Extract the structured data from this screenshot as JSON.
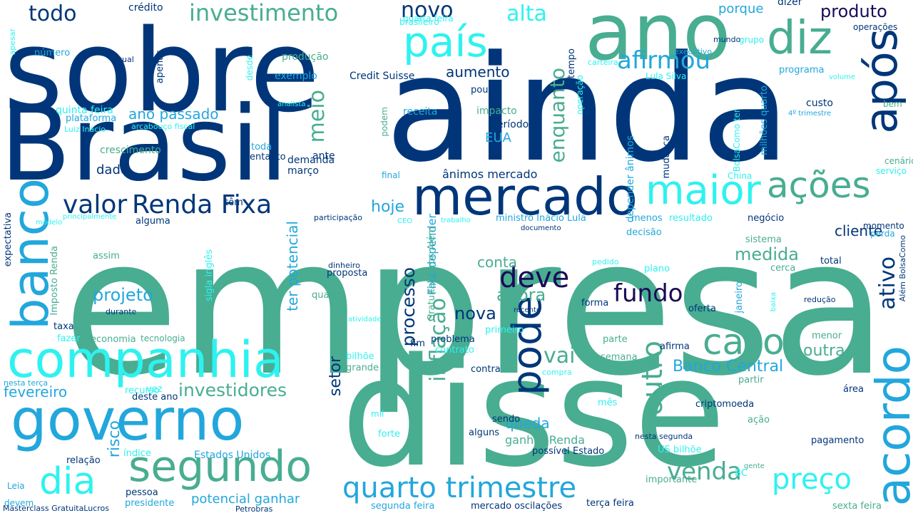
{
  "palette": {
    "navy": "#003679",
    "teal": "#48ad91",
    "cyan": "#2ef2f0",
    "blue": "#22a7dc",
    "indigo": "#1a0a57",
    "background": "#ffffff"
  },
  "words": [
    {
      "text": "empresa",
      "color": "teal"
    },
    {
      "text": "disse",
      "color": "teal"
    },
    {
      "text": "ainda",
      "color": "navy"
    },
    {
      "text": "sobre",
      "color": "navy"
    },
    {
      "text": "Brasil",
      "color": "navy"
    },
    {
      "text": "ano",
      "color": "teal"
    },
    {
      "text": "governo",
      "color": "blue"
    },
    {
      "text": "companhia",
      "color": "cyan"
    },
    {
      "text": "mercado",
      "color": "navy"
    },
    {
      "text": "segundo",
      "color": "teal"
    },
    {
      "text": "maior",
      "color": "cyan"
    },
    {
      "text": "ações",
      "color": "teal"
    },
    {
      "text": "diz",
      "color": "teal"
    },
    {
      "text": "país",
      "color": "cyan"
    },
    {
      "text": "após",
      "color": "navy"
    },
    {
      "text": "acordo",
      "color": "blue"
    },
    {
      "text": "banco",
      "color": "blue"
    },
    {
      "text": "caso",
      "color": "teal"
    },
    {
      "text": "dia",
      "color": "cyan"
    },
    {
      "text": "pode",
      "color": "navy"
    },
    {
      "text": "quarto trimestre",
      "color": "blue"
    },
    {
      "text": "investimento",
      "color": "teal"
    },
    {
      "text": "preço",
      "color": "cyan"
    },
    {
      "text": "venda",
      "color": "teal"
    },
    {
      "text": "Renda Fixa",
      "color": "navy"
    },
    {
      "text": "afirmou",
      "color": "blue"
    },
    {
      "text": "valor",
      "color": "navy"
    },
    {
      "text": "fundo",
      "color": "indigo"
    },
    {
      "text": "deve",
      "color": "indigo"
    },
    {
      "text": "outro",
      "color": "teal"
    },
    {
      "text": "todo",
      "color": "navy"
    },
    {
      "text": "alta",
      "color": "cyan"
    },
    {
      "text": "novo",
      "color": "navy"
    },
    {
      "text": "produto",
      "color": "indigo"
    },
    {
      "text": "enquanto",
      "color": "teal"
    },
    {
      "text": "investidores",
      "color": "teal"
    },
    {
      "text": "vai",
      "color": "teal"
    },
    {
      "text": "ativo",
      "color": "navy"
    },
    {
      "text": "inflação",
      "color": "teal"
    },
    {
      "text": "processo",
      "color": "navy"
    },
    {
      "text": "meio",
      "color": "teal"
    },
    {
      "text": "projeto",
      "color": "blue"
    },
    {
      "text": "medida",
      "color": "teal"
    },
    {
      "text": "agora",
      "color": "teal"
    },
    {
      "text": "nova",
      "color": "navy"
    },
    {
      "text": "Banco Central",
      "color": "blue"
    },
    {
      "text": "outra",
      "color": "teal"
    },
    {
      "text": "cliente",
      "color": "navy"
    },
    {
      "text": "conta",
      "color": "teal"
    },
    {
      "text": "risco",
      "color": "blue"
    },
    {
      "text": "setor",
      "color": "navy"
    },
    {
      "text": "aumento",
      "color": "navy"
    },
    {
      "text": "fevereiro",
      "color": "blue"
    },
    {
      "text": "ano passado",
      "color": "blue"
    },
    {
      "text": "hoje",
      "color": "blue"
    },
    {
      "text": "porque",
      "color": "blue"
    },
    {
      "text": "queda",
      "color": "blue"
    },
    {
      "text": "potencial ganhar",
      "color": "blue"
    },
    {
      "text": "ter potencial",
      "color": "blue"
    },
    {
      "text": "dado",
      "color": "navy"
    },
    {
      "text": "ânimos mercado",
      "color": "navy"
    },
    {
      "text": "EUA",
      "color": "blue"
    },
    {
      "text": "Fixa depender",
      "color": "blue"
    },
    {
      "text": "ganhar Renda",
      "color": "teal"
    },
    {
      "text": "depender ânimos",
      "color": "blue"
    },
    {
      "text": "Estados Unidos",
      "color": "blue"
    },
    {
      "text": "crescimento",
      "color": "teal"
    },
    {
      "text": "demanda",
      "color": "navy"
    },
    {
      "text": "março",
      "color": "navy"
    },
    {
      "text": "entanto",
      "color": "navy"
    },
    {
      "text": "toda",
      "color": "blue"
    },
    {
      "text": "ante",
      "color": "navy"
    },
    {
      "text": "dizer",
      "color": "navy"
    },
    {
      "text": "tempo",
      "color": "navy"
    },
    {
      "text": "receita",
      "color": "blue"
    },
    {
      "text": "impacto",
      "color": "teal"
    },
    {
      "text": "período",
      "color": "navy"
    },
    {
      "text": "pouco",
      "color": "navy"
    },
    {
      "text": "Credit Suisse",
      "color": "navy"
    },
    {
      "text": "exemplo",
      "color": "blue"
    },
    {
      "text": "produção",
      "color": "teal"
    },
    {
      "text": "crédito",
      "color": "navy"
    },
    {
      "text": "quarta feira",
      "color": "cyan"
    },
    {
      "text": "brasileiro",
      "color": "cyan"
    },
    {
      "text": "número",
      "color": "blue"
    },
    {
      "text": "atual",
      "color": "navy"
    },
    {
      "text": "apenas",
      "color": "navy"
    },
    {
      "text": "desde",
      "color": "cyan"
    },
    {
      "text": "quinta feira",
      "color": "cyan"
    },
    {
      "text": "plataforma",
      "color": "blue"
    },
    {
      "text": "Luiz Inácio",
      "color": "cyan"
    },
    {
      "text": "arcabouço fiscal",
      "color": "cyan"
    },
    {
      "text": "analista",
      "color": "cyan"
    },
    {
      "text": "apesar",
      "color": "cyan"
    },
    {
      "text": "operações",
      "color": "navy"
    },
    {
      "text": "grupo",
      "color": "cyan"
    },
    {
      "text": "mundo",
      "color": "navy"
    },
    {
      "text": "executivo",
      "color": "blue"
    },
    {
      "text": "carteira",
      "color": "cyan"
    },
    {
      "text": "programa",
      "color": "blue"
    },
    {
      "text": "volume",
      "color": "cyan"
    },
    {
      "text": "Lula Silva",
      "color": "cyan"
    },
    {
      "text": "custo",
      "color": "navy"
    },
    {
      "text": "4º trimestre",
      "color": "blue"
    },
    {
      "text": "milhões quarto",
      "color": "blue"
    },
    {
      "text": "bem",
      "color": "teal"
    },
    {
      "text": "operação",
      "color": "cyan"
    },
    {
      "text": "BolsaComo ter",
      "color": "cyan"
    },
    {
      "text": "mudança",
      "color": "navy"
    },
    {
      "text": "cenário",
      "color": "teal"
    },
    {
      "text": "serviço",
      "color": "cyan"
    },
    {
      "text": "China",
      "color": "cyan"
    },
    {
      "text": "final",
      "color": "blue"
    },
    {
      "text": "podem",
      "color": "teal"
    },
    {
      "text": "negócio",
      "color": "navy"
    },
    {
      "text": "resultado",
      "color": "cyan"
    },
    {
      "text": "menos",
      "color": "blue"
    },
    {
      "text": "ministro Inácio Lula",
      "color": "blue"
    },
    {
      "text": "documento",
      "color": "navy"
    },
    {
      "text": "decisão",
      "color": "blue"
    },
    {
      "text": "sistema",
      "color": "teal"
    },
    {
      "text": "momento",
      "color": "navy"
    },
    {
      "text": "perda",
      "color": "blue"
    },
    {
      "text": "Além BolsaComo",
      "color": "navy"
    },
    {
      "text": "pedido",
      "color": "cyan"
    },
    {
      "text": "plano",
      "color": "cyan"
    },
    {
      "text": "total",
      "color": "navy"
    },
    {
      "text": "cerca",
      "color": "teal"
    },
    {
      "text": "janeiro",
      "color": "blue"
    },
    {
      "text": "baixa",
      "color": "cyan"
    },
    {
      "text": "redução",
      "color": "navy"
    },
    {
      "text": "forma",
      "color": "navy"
    },
    {
      "text": "oferta",
      "color": "navy"
    },
    {
      "text": "recente",
      "color": "navy"
    },
    {
      "text": "primeiro",
      "color": "cyan"
    },
    {
      "text": "parte",
      "color": "teal"
    },
    {
      "text": "menor",
      "color": "teal"
    },
    {
      "text": "afirma",
      "color": "navy"
    },
    {
      "text": "semana",
      "color": "teal"
    },
    {
      "text": "compra",
      "color": "cyan"
    },
    {
      "text": "contra",
      "color": "navy"
    },
    {
      "text": "partir",
      "color": "teal"
    },
    {
      "text": "área",
      "color": "navy"
    },
    {
      "text": "criptomoeda",
      "color": "navy"
    },
    {
      "text": "mês",
      "color": "cyan"
    },
    {
      "text": "ação",
      "color": "teal"
    },
    {
      "text": "nesta segunda",
      "color": "navy"
    },
    {
      "text": "pagamento",
      "color": "navy"
    },
    {
      "text": "US bilhõe",
      "color": "cyan"
    },
    {
      "text": "Estado",
      "color": "navy"
    },
    {
      "text": "gente",
      "color": "teal"
    },
    {
      "text": "BC",
      "color": "cyan"
    },
    {
      "text": "importante",
      "color": "teal"
    },
    {
      "text": "sexta feira",
      "color": "teal"
    },
    {
      "text": "terça feira",
      "color": "navy"
    },
    {
      "text": "mercado oscilações",
      "color": "navy"
    },
    {
      "text": "segunda feira",
      "color": "blue"
    },
    {
      "text": "Petrobras",
      "color": "navy"
    },
    {
      "text": "Masterclass GratuitaLucros",
      "color": "navy"
    },
    {
      "text": "presidente",
      "color": "blue"
    },
    {
      "text": "devem",
      "color": "blue"
    },
    {
      "text": "Leia",
      "color": "blue"
    },
    {
      "text": "pessoa",
      "color": "navy"
    },
    {
      "text": "índice",
      "color": "cyan"
    },
    {
      "text": "relação",
      "color": "navy"
    },
    {
      "text": "possível",
      "color": "navy"
    },
    {
      "text": "forte",
      "color": "cyan"
    },
    {
      "text": "alguns",
      "color": "navy"
    },
    {
      "text": "sendo",
      "color": "navy"
    },
    {
      "text": "mil",
      "color": "cyan"
    },
    {
      "text": "grande",
      "color": "teal"
    },
    {
      "text": "bilhõe",
      "color": "cyan"
    },
    {
      "text": "contrato",
      "color": "cyan"
    },
    {
      "text": "problema",
      "color": "navy"
    },
    {
      "text": "fim",
      "color": "navy"
    },
    {
      "text": "nesta terça",
      "color": "blue"
    },
    {
      "text": "recurso",
      "color": "cyan"
    },
    {
      "text": "vez",
      "color": "cyan"
    },
    {
      "text": "deste ano",
      "color": "navy"
    },
    {
      "text": "fazer",
      "color": "cyan"
    },
    {
      "text": "economia",
      "color": "teal"
    },
    {
      "text": "tecnologia",
      "color": "teal"
    },
    {
      "text": "taxa",
      "color": "navy"
    },
    {
      "text": "durante",
      "color": "navy"
    },
    {
      "text": "assim",
      "color": "teal"
    },
    {
      "text": "alguma",
      "color": "navy"
    },
    {
      "text": "participação",
      "color": "navy"
    },
    {
      "text": "trabalho",
      "color": "cyan"
    },
    {
      "text": "CEO",
      "color": "cyan"
    },
    {
      "text": "modelo",
      "color": "cyan"
    },
    {
      "text": "principalmente",
      "color": "cyan"
    },
    {
      "text": "têm",
      "color": "navy"
    },
    {
      "text": "expectativa",
      "color": "navy"
    },
    {
      "text": "Imposto Renda",
      "color": "teal"
    },
    {
      "text": "sigla inglês",
      "color": "cyan"
    },
    {
      "text": "GratuitaLucros Além",
      "color": "teal"
    },
    {
      "text": "dinheiro",
      "color": "navy"
    },
    {
      "text": "proposta",
      "color": "navy"
    },
    {
      "text": "quanto",
      "color": "teal"
    },
    {
      "text": "atividade",
      "color": "cyan"
    }
  ]
}
